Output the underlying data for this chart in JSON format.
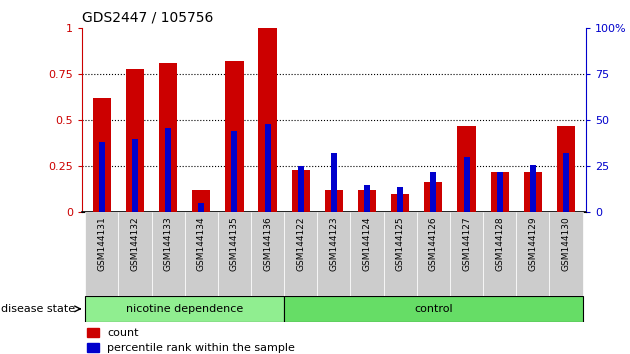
{
  "title": "GDS2447 / 105756",
  "categories": [
    "GSM144131",
    "GSM144132",
    "GSM144133",
    "GSM144134",
    "GSM144135",
    "GSM144136",
    "GSM144122",
    "GSM144123",
    "GSM144124",
    "GSM144125",
    "GSM144126",
    "GSM144127",
    "GSM144128",
    "GSM144129",
    "GSM144130"
  ],
  "red_values": [
    0.62,
    0.78,
    0.81,
    0.12,
    0.82,
    1.0,
    0.23,
    0.12,
    0.12,
    0.1,
    0.165,
    0.47,
    0.22,
    0.22,
    0.47
  ],
  "blue_values": [
    0.38,
    0.4,
    0.46,
    0.05,
    0.44,
    0.48,
    0.25,
    0.32,
    0.15,
    0.14,
    0.22,
    0.3,
    0.22,
    0.26,
    0.32
  ],
  "red_color": "#cc0000",
  "blue_color": "#0000cc",
  "group1_label": "nicotine dependence",
  "group2_label": "control",
  "group1_count": 6,
  "group2_count": 9,
  "group1_color": "#90ee90",
  "group2_color": "#66dd66",
  "disease_state_label": "disease state",
  "legend_red": "count",
  "legend_blue": "percentile rank within the sample",
  "ylim_left": [
    0,
    1
  ],
  "ylim_right": [
    0,
    100
  ],
  "yticks_left": [
    0,
    0.25,
    0.5,
    0.75,
    1.0
  ],
  "ytick_labels_left": [
    "0",
    "0.25",
    "0.5",
    "0.75",
    "1"
  ],
  "yticks_right": [
    0,
    25,
    50,
    75,
    100
  ],
  "ytick_labels_right": [
    "0",
    "25",
    "50",
    "75",
    "100%"
  ],
  "background_color": "#ffffff",
  "red_bar_width": 0.55,
  "blue_bar_width": 0.18
}
